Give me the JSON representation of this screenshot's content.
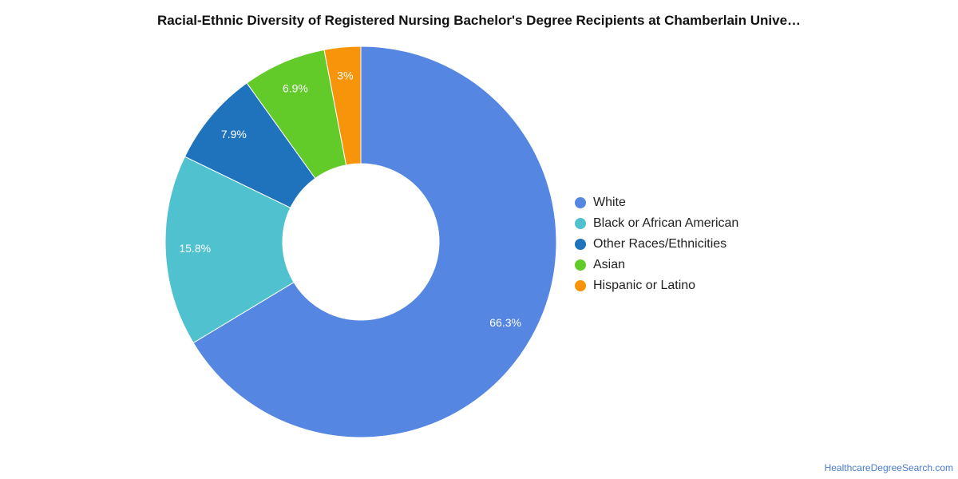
{
  "chart_data": {
    "type": "pie",
    "title": "Racial-Ethnic Diversity of Registered Nursing Bachelor's Degree Recipients at Chamberlain Unive…",
    "categories": [
      "White",
      "Black or African American",
      "Other Races/Ethnicities",
      "Asian",
      "Hispanic or Latino"
    ],
    "values": [
      66.3,
      15.8,
      7.9,
      6.9,
      3.0
    ],
    "value_labels": [
      "66.3%",
      "15.8%",
      "7.9%",
      "6.9%",
      "3%"
    ],
    "colors": [
      "#5486e2",
      "#4fc1cf",
      "#1f73bd",
      "#62cb2a",
      "#f8940a"
    ],
    "donut": true,
    "start_angle": "top",
    "direction": "clockwise",
    "legend": "right"
  },
  "source": "HealthcareDegreeSearch.com"
}
